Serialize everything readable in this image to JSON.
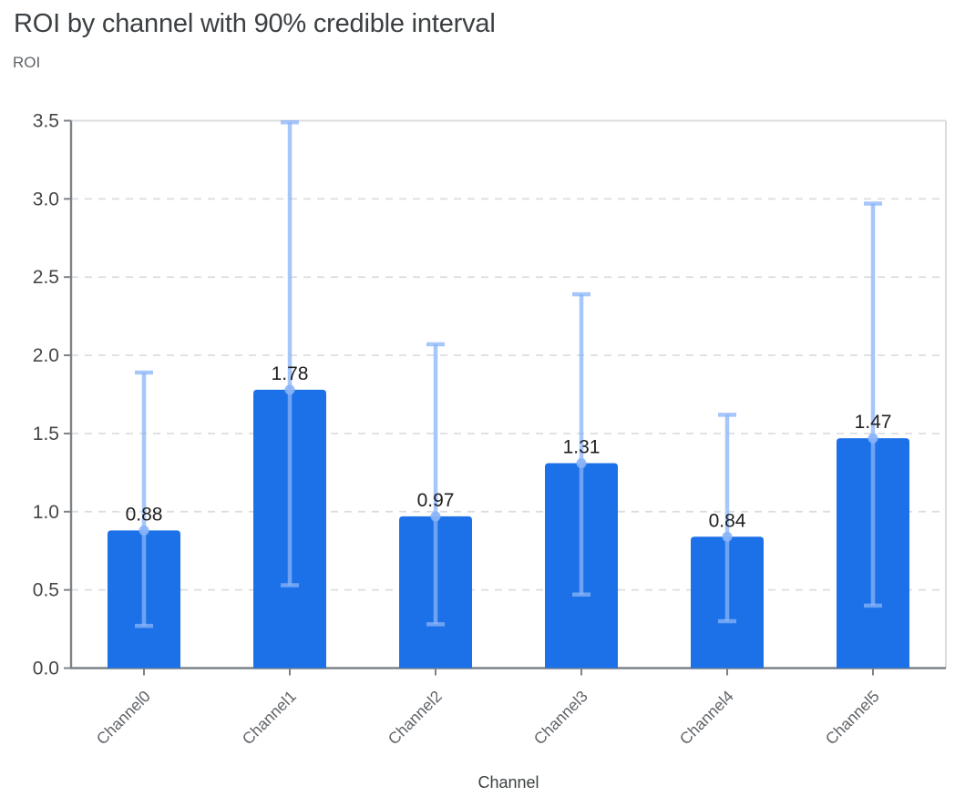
{
  "header": {
    "title": "ROI by channel with 90% credible interval"
  },
  "chart_data": {
    "type": "bar",
    "title": "ROI by channel with 90% credible interval",
    "xlabel": "Channel",
    "ylabel": "ROI",
    "categories": [
      "Channel0",
      "Channel1",
      "Channel2",
      "Channel3",
      "Channel4",
      "Channel5"
    ],
    "values": [
      0.88,
      1.78,
      0.97,
      1.31,
      0.84,
      1.47
    ],
    "value_labels": [
      "0.88",
      "1.78",
      "0.97",
      "1.31",
      "0.84",
      "1.47"
    ],
    "ci_lower": [
      0.27,
      0.53,
      0.28,
      0.47,
      0.3,
      0.4
    ],
    "ci_upper": [
      1.89,
      3.49,
      2.07,
      2.39,
      1.62,
      2.97
    ],
    "ylim": [
      0,
      3.5
    ],
    "ytick_labels": [
      "0.0",
      "0.5",
      "1.0",
      "1.5",
      "2.0",
      "2.5",
      "3.0",
      "3.5"
    ],
    "grid": "horizontal-dashed",
    "legend": "none",
    "colors": {
      "bar": "#1C71E8",
      "ci_line": "#8AB4F8",
      "ci_marker": "#8AB4F8",
      "grid_line": "#DADCE0",
      "plot_border": "#DADCE0",
      "axis_line": "#7D8288",
      "title_text": "#3C4043",
      "axis_title_text": "#3C4043",
      "tick_label_text": "#44474A",
      "x_label_text": "#5F6368",
      "value_label_text": "#1F1F1F"
    }
  }
}
